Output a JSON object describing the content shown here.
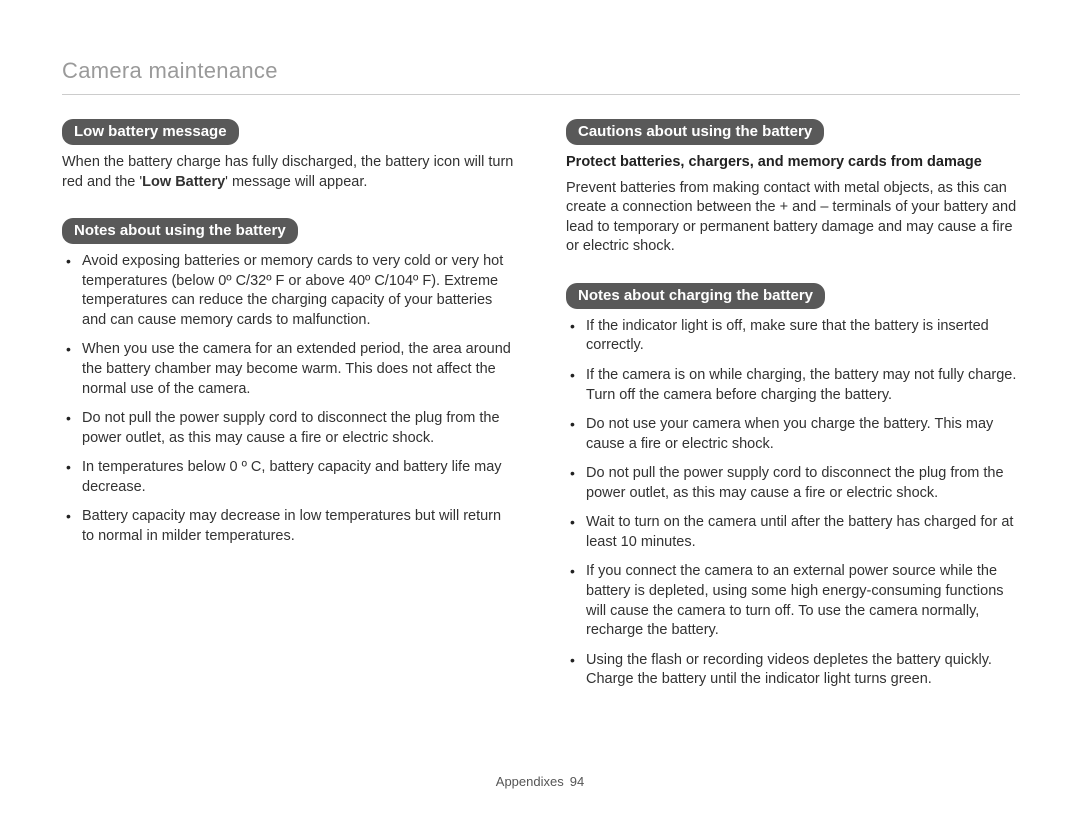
{
  "pageTitle": "Camera maintenance",
  "left": {
    "section1": {
      "pill": "Low battery message",
      "text_before": "When the battery charge has fully discharged, the battery icon will turn red and the '",
      "text_bold": "Low Battery",
      "text_after": "' message will appear."
    },
    "section2": {
      "pill": "Notes about using the battery",
      "bullets": [
        "Avoid exposing batteries or memory cards to very cold or very hot temperatures (below 0º C/32º F or above 40º C/104º F). Extreme temperatures can reduce the charging capacity of your batteries and can cause memory cards to malfunction.",
        "When you use the camera for an extended period, the area around the battery chamber may become warm. This does not affect the normal use of the camera.",
        "Do not pull the power supply cord to disconnect the plug from the power outlet, as this may cause a fire or electric shock.",
        "In temperatures below 0 º C, battery capacity and battery life may decrease.",
        "Battery capacity may decrease in low temperatures but will return to normal in milder temperatures."
      ]
    }
  },
  "right": {
    "section1": {
      "pill": "Cautions about using the battery",
      "subhead": "Protect batteries, chargers, and memory cards from damage",
      "text": "Prevent batteries from making contact with metal objects, as this can create a connection between the + and – terminals of your battery and lead to temporary or permanent battery damage and may cause a fire or electric shock."
    },
    "section2": {
      "pill": "Notes about charging the battery",
      "bullets": [
        "If the indicator light is off, make sure that the battery is inserted correctly.",
        "If the camera is on while charging, the battery may not fully charge. Turn off the camera before charging the battery.",
        "Do not use your camera when you charge the battery. This may cause a fire or electric shock.",
        "Do not pull the power supply cord to disconnect the plug from the power outlet, as this may cause a fire or electric shock.",
        "Wait to turn on the camera until after the battery has charged for at least 10 minutes.",
        "If you connect the camera to an external power source while the battery is depleted, using some high energy-consuming functions will cause the camera to turn off. To use the camera normally, recharge the battery.",
        "Using the flash or recording videos depletes the battery quickly. Charge the battery until the indicator light turns green."
      ]
    }
  },
  "footer": {
    "label": "Appendixes",
    "page": "94"
  }
}
